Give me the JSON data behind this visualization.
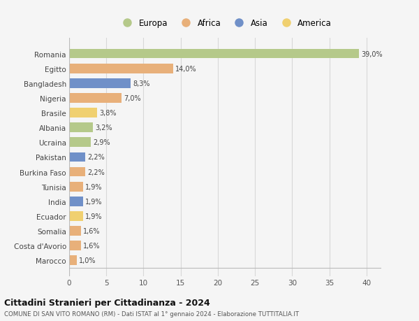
{
  "countries": [
    "Romania",
    "Egitto",
    "Bangladesh",
    "Nigeria",
    "Brasile",
    "Albania",
    "Ucraina",
    "Pakistan",
    "Burkina Faso",
    "Tunisia",
    "India",
    "Ecuador",
    "Somalia",
    "Costa d'Avorio",
    "Marocco"
  ],
  "values": [
    39.0,
    14.0,
    8.3,
    7.0,
    3.8,
    3.2,
    2.9,
    2.2,
    2.2,
    1.9,
    1.9,
    1.9,
    1.6,
    1.6,
    1.0
  ],
  "labels": [
    "39,0%",
    "14,0%",
    "8,3%",
    "7,0%",
    "3,8%",
    "3,2%",
    "2,9%",
    "2,2%",
    "2,2%",
    "1,9%",
    "1,9%",
    "1,9%",
    "1,6%",
    "1,6%",
    "1,0%"
  ],
  "colors": [
    "#b5c98a",
    "#e8b07a",
    "#7090c8",
    "#e8b07a",
    "#f0d070",
    "#b5c98a",
    "#b5c98a",
    "#7090c8",
    "#e8b07a",
    "#e8b07a",
    "#7090c8",
    "#f0d070",
    "#e8b07a",
    "#e8b07a",
    "#e8b07a"
  ],
  "legend_labels": [
    "Europa",
    "Africa",
    "Asia",
    "America"
  ],
  "legend_colors": [
    "#b5c98a",
    "#e8b07a",
    "#7090c8",
    "#f0d070"
  ],
  "xlim": [
    0,
    42
  ],
  "xticks": [
    0,
    5,
    10,
    15,
    20,
    25,
    30,
    35,
    40
  ],
  "title": "Cittadini Stranieri per Cittadinanza - 2024",
  "subtitle": "COMUNE DI SAN VITO ROMANO (RM) - Dati ISTAT al 1° gennaio 2024 - Elaborazione TUTTITALIA.IT",
  "bg_color": "#f5f5f5",
  "grid_color": "#d8d8d8"
}
